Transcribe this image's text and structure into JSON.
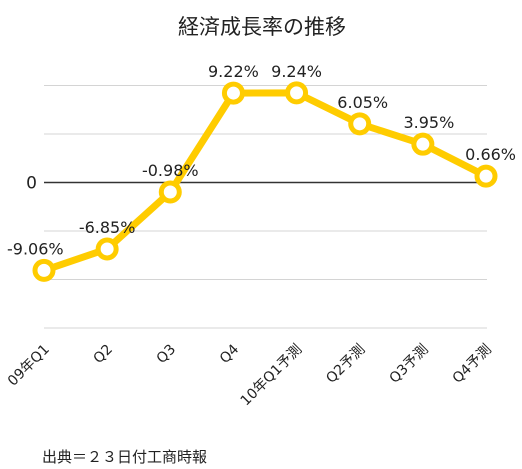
{
  "chart_data": {
    "type": "line",
    "title": "経済成長率の推移",
    "categories": [
      "09年Q1",
      "Q2",
      "Q3",
      "Q4",
      "10年Q1予測",
      "Q2予測",
      "Q3予測",
      "Q4予測"
    ],
    "values": [
      -9.06,
      -6.85,
      -0.98,
      9.22,
      9.24,
      6.05,
      3.95,
      0.66
    ],
    "data_labels": [
      "-9.06%",
      "-6.85%",
      "-0.98%",
      "9.22%",
      "9.24%",
      "6.05%",
      "3.95%",
      "0.66%"
    ],
    "y_tick_labels": [
      {
        "value": 0,
        "label": "0"
      }
    ],
    "ylim": [
      -15,
      15
    ],
    "gridlines": [
      -15,
      -10,
      -5,
      0,
      5,
      10,
      15
    ],
    "grid": true,
    "legend": "none",
    "xlabel": "",
    "ylabel": "",
    "colors": {
      "line": "#FFCC00",
      "marker_fill": "#ffffff",
      "grid": "#d4d4d4",
      "zero_line": "#333333"
    }
  },
  "source": "出典＝２３日付工商時報"
}
